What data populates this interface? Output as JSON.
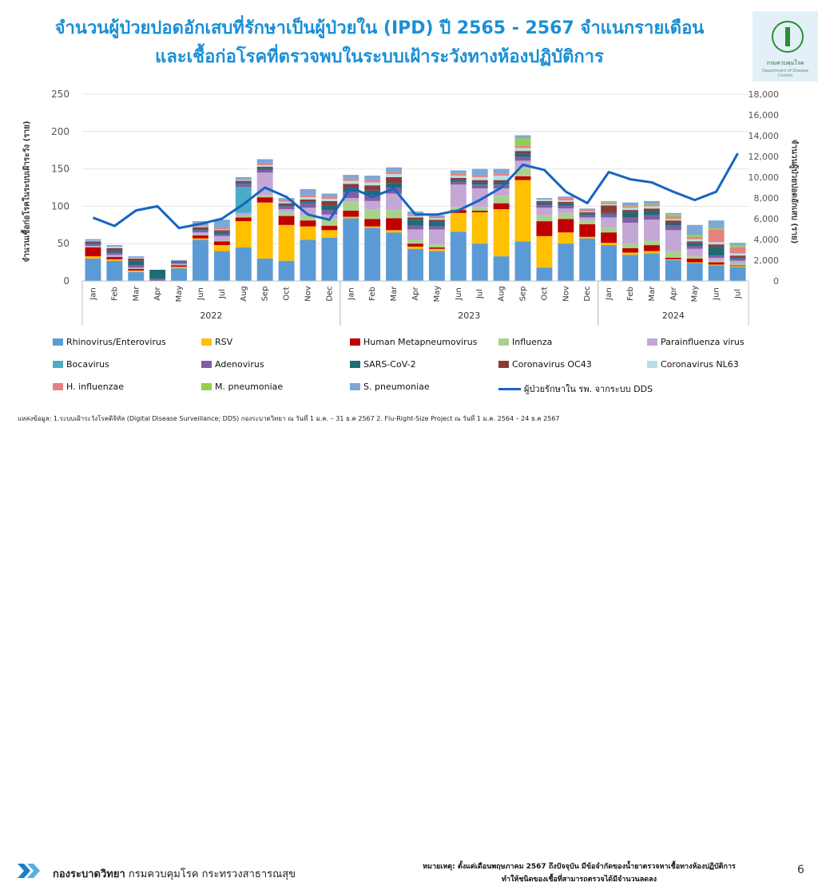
{
  "title": {
    "line1": "จำนวนผู้ป่วยปอดอักเสบที่รักษาเป็นผู้ป่วยใน (IPD) ปี 2565 - 2567 จำแนกรายเดือน",
    "line2": "และเชื้อก่อโรคที่ตรวจพบในระบบเฝ้าระวังทางห้องปฏิบัติการ"
  },
  "logo": {
    "text": "กรมควบคุมโรค",
    "sub": "Department of Disease Control"
  },
  "colors": {
    "title": "#1a8fd6",
    "line": "#1565c0",
    "accent_chevron": "#1a7fc4"
  },
  "chart_data": {
    "type": "bar",
    "stacked": true,
    "ylabel": "จำนวนเชื้อก่อโรคในระบบเฝ้าระวัง (ราย)",
    "ylabel_right": "จำนวนผู้ป่วยปอดอักเสบ (ราย)",
    "ylim": [
      0,
      250
    ],
    "ylim_right": [
      0,
      18000
    ],
    "yticks": [
      "0",
      "50",
      "100",
      "150",
      "200",
      "250"
    ],
    "yticks_right": [
      "0",
      "2,000",
      "4,000",
      "6,000",
      "8,000",
      "10,000",
      "12,000",
      "14,000",
      "16,000",
      "18,000"
    ],
    "years": [
      {
        "label": "2022",
        "start": 0,
        "end": 12
      },
      {
        "label": "2023",
        "start": 12,
        "end": 24
      },
      {
        "label": "2024",
        "start": 24,
        "end": 31
      }
    ],
    "categories": [
      "Jan",
      "Feb",
      "Mar",
      "Apr",
      "May",
      "Jun",
      "Jul",
      "Aug",
      "Sep",
      "Oct",
      "Nov",
      "Dec",
      "Jan",
      "Feb",
      "Mar",
      "Apr",
      "May",
      "Jun",
      "Jul",
      "Aug",
      "Sep",
      "Oct",
      "Nov",
      "Dec",
      "Jan",
      "Feb",
      "Mar",
      "Apr",
      "May",
      "Jun",
      "Jul"
    ],
    "series": [
      {
        "name": "Rhinovirus/Enterovirus",
        "color": "#5b9bd5",
        "values": [
          30,
          27,
          12,
          0,
          17,
          55,
          40,
          45,
          30,
          27,
          55,
          58,
          84,
          71,
          65,
          43,
          40,
          66,
          50,
          33,
          53,
          18,
          50,
          57,
          48,
          35,
          37,
          28,
          24,
          21,
          19
        ]
      },
      {
        "name": "RSV",
        "color": "#ffc000",
        "values": [
          3,
          2,
          2,
          0,
          2,
          2,
          8,
          35,
          75,
          48,
          18,
          10,
          2,
          2,
          3,
          3,
          3,
          25,
          42,
          63,
          82,
          42,
          15,
          2,
          3,
          3,
          3,
          1,
          1,
          1,
          1
        ]
      },
      {
        "name": "Human Metapneumovirus",
        "color": "#c00000",
        "values": [
          12,
          3,
          2,
          0,
          2,
          4,
          5,
          5,
          7,
          12,
          8,
          6,
          8,
          10,
          16,
          4,
          2,
          4,
          2,
          8,
          5,
          20,
          18,
          17,
          14,
          6,
          8,
          2,
          5,
          3,
          1
        ]
      },
      {
        "name": "Influenza",
        "color": "#a9d18e",
        "values": [
          0,
          0,
          0,
          0,
          0,
          1,
          1,
          2,
          3,
          5,
          7,
          9,
          12,
          13,
          11,
          5,
          4,
          4,
          5,
          10,
          11,
          8,
          8,
          5,
          7,
          6,
          6,
          9,
          3,
          2,
          2
        ]
      },
      {
        "name": "Parainfluenza virus",
        "color": "#c5a7d6",
        "values": [
          2,
          3,
          2,
          0,
          2,
          3,
          6,
          4,
          30,
          4,
          10,
          6,
          5,
          11,
          22,
          14,
          20,
          30,
          25,
          10,
          10,
          10,
          6,
          4,
          13,
          28,
          28,
          28,
          10,
          4,
          4
        ]
      },
      {
        "name": "Bocavirus",
        "color": "#4bacc6",
        "values": [
          0,
          0,
          0,
          0,
          0,
          0,
          0,
          35,
          0,
          0,
          0,
          0,
          0,
          0,
          0,
          0,
          0,
          0,
          0,
          0,
          0,
          0,
          0,
          0,
          0,
          0,
          0,
          0,
          0,
          0,
          0
        ]
      },
      {
        "name": "Adenovirus",
        "color": "#7f5fa6",
        "values": [
          2,
          3,
          3,
          3,
          2,
          3,
          3,
          4,
          4,
          4,
          6,
          6,
          8,
          8,
          8,
          5,
          4,
          4,
          5,
          5,
          5,
          4,
          4,
          3,
          4,
          7,
          6,
          6,
          4,
          3,
          3
        ]
      },
      {
        "name": "SARS-CoV-2",
        "color": "#1f6b75",
        "values": [
          2,
          3,
          6,
          12,
          1,
          2,
          3,
          2,
          2,
          2,
          2,
          6,
          5,
          6,
          6,
          8,
          6,
          2,
          3,
          3,
          4,
          3,
          3,
          2,
          2,
          7,
          6,
          4,
          4,
          12,
          2
        ]
      },
      {
        "name": "Coronavirus OC43",
        "color": "#8b3a3a",
        "values": [
          2,
          3,
          3,
          0,
          1,
          2,
          2,
          2,
          2,
          2,
          3,
          6,
          6,
          7,
          8,
          3,
          3,
          3,
          3,
          3,
          4,
          2,
          2,
          2,
          10,
          3,
          3,
          3,
          2,
          3,
          2
        ]
      },
      {
        "name": "Coronavirus NL63",
        "color": "#b7dee8",
        "values": [
          1,
          2,
          1,
          0,
          0,
          1,
          1,
          1,
          2,
          2,
          3,
          3,
          4,
          4,
          4,
          2,
          2,
          3,
          4,
          6,
          4,
          2,
          2,
          1,
          2,
          3,
          3,
          2,
          3,
          3,
          3
        ]
      },
      {
        "name": "H. influenzae",
        "color": "#e6817e",
        "values": [
          0,
          0,
          0,
          0,
          0,
          1,
          2,
          1,
          2,
          2,
          3,
          3,
          3,
          3,
          3,
          2,
          2,
          3,
          3,
          3,
          3,
          1,
          3,
          2,
          2,
          2,
          2,
          3,
          3,
          17,
          8
        ]
      },
      {
        "name": "M. pneumoniae",
        "color": "#92d050",
        "values": [
          0,
          0,
          0,
          0,
          0,
          0,
          0,
          0,
          0,
          0,
          0,
          0,
          0,
          0,
          0,
          0,
          0,
          0,
          0,
          0,
          10,
          0,
          0,
          0,
          1,
          1,
          1,
          3,
          3,
          2,
          3
        ]
      },
      {
        "name": "S. pneumoniae",
        "color": "#7da7d8",
        "values": [
          2,
          2,
          2,
          0,
          1,
          6,
          11,
          3,
          6,
          3,
          8,
          4,
          5,
          6,
          6,
          4,
          2,
          4,
          8,
          6,
          4,
          1,
          2,
          2,
          1,
          4,
          4,
          2,
          13,
          10,
          3
        ]
      }
    ],
    "line_series": {
      "name": "ผู้ป่วยรักษาใน รพ. จากระบบ DDS",
      "color": "#1565c0",
      "axis": "right",
      "values": [
        6100,
        5300,
        6800,
        7200,
        5100,
        5500,
        6000,
        7400,
        9000,
        8100,
        6400,
        5900,
        9000,
        8100,
        8900,
        6400,
        6400,
        6800,
        7800,
        9000,
        11200,
        10700,
        8600,
        7500,
        10500,
        9800,
        9500,
        8600,
        7800,
        8600,
        12300
      ]
    }
  },
  "source": "แหล่งข้อมูล: 1.ระบบเฝ้าระวังโรคดิจิทัล (Digital Disease Surveillance; DDS) กองระบาดวิทยา ณ วันที่ 1 ม.ค. – 31 ธ.ค 2567      2. Flu-Right-Size Project ณ วันที่ 1 ม.ค. 2564 – 24 ธ.ค 2567",
  "footer": {
    "org_bold": "กองระบาดวิทยา",
    "org_rest": " กรมควบคุมโรค กระทรวงสาธารณสุข",
    "note_line1": "หมายเหตุ: ตั้งแต่เดือนพฤษภาคม 2567 ถึงปัจจุบัน มีข้อจำกัดของน้ำยาตรวจหาเชื้อทางห้องปฏิบัติการ",
    "note_line2": "ทำให้ชนิดของเชื้อที่สามารถตรวจได้มีจำนวนลดลง",
    "page": "6"
  }
}
